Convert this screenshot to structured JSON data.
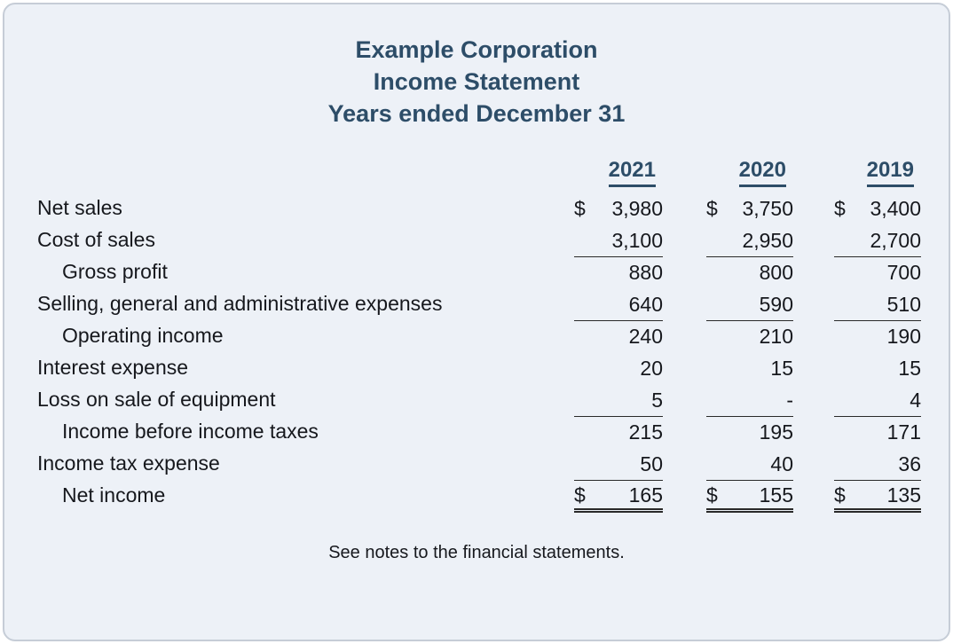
{
  "title": {
    "lines": [
      "Example Corporation",
      "Income Statement",
      "Years ended December 31"
    ]
  },
  "table": {
    "columns": [
      "2021",
      "2020",
      "2019"
    ],
    "rows": [
      {
        "label": "Net sales",
        "indent": false,
        "u": "none",
        "cells": [
          {
            "p": "$",
            "v": "3,980"
          },
          {
            "p": "$",
            "v": "3,750"
          },
          {
            "p": "$",
            "v": "3,400"
          }
        ]
      },
      {
        "label": "Cost of sales",
        "indent": false,
        "u": "single",
        "cells": [
          {
            "p": "",
            "v": "3,100"
          },
          {
            "p": "",
            "v": "2,950"
          },
          {
            "p": "",
            "v": "2,700"
          }
        ]
      },
      {
        "label": "Gross profit",
        "indent": true,
        "u": "none",
        "cells": [
          {
            "p": "",
            "v": "880"
          },
          {
            "p": "",
            "v": "800"
          },
          {
            "p": "",
            "v": "700"
          }
        ]
      },
      {
        "label": "Selling, general and administrative expenses",
        "indent": false,
        "u": "single",
        "cells": [
          {
            "p": "",
            "v": "640"
          },
          {
            "p": "",
            "v": "590"
          },
          {
            "p": "",
            "v": "510"
          }
        ]
      },
      {
        "label": "Operating income",
        "indent": true,
        "u": "none",
        "cells": [
          {
            "p": "",
            "v": "240"
          },
          {
            "p": "",
            "v": "210"
          },
          {
            "p": "",
            "v": "190"
          }
        ]
      },
      {
        "label": "Interest expense",
        "indent": false,
        "u": "none",
        "cells": [
          {
            "p": "",
            "v": "20"
          },
          {
            "p": "",
            "v": "15"
          },
          {
            "p": "",
            "v": "15"
          }
        ]
      },
      {
        "label": "Loss on sale of equipment",
        "indent": false,
        "u": "single",
        "cells": [
          {
            "p": "",
            "v": "5"
          },
          {
            "p": "",
            "v": "-"
          },
          {
            "p": "",
            "v": "4"
          }
        ]
      },
      {
        "label": "Income before income taxes",
        "indent": true,
        "u": "none",
        "cells": [
          {
            "p": "",
            "v": "215"
          },
          {
            "p": "",
            "v": "195"
          },
          {
            "p": "",
            "v": "171"
          }
        ]
      },
      {
        "label": "Income tax expense",
        "indent": false,
        "u": "single",
        "cells": [
          {
            "p": "",
            "v": "50"
          },
          {
            "p": "",
            "v": "40"
          },
          {
            "p": "",
            "v": "36"
          }
        ]
      },
      {
        "label": "Net income",
        "indent": true,
        "u": "double",
        "cells": [
          {
            "p": "$",
            "v": "165"
          },
          {
            "p": "$",
            "v": "155"
          },
          {
            "p": "$",
            "v": "135"
          }
        ]
      }
    ]
  },
  "footer": {
    "note": "See notes to the financial statements."
  },
  "colors": {
    "accent": "#2d4d68",
    "card_background": "#edf1f7",
    "card_border": "#c6cdd7",
    "text": "#16181d",
    "rule_line": "#2a2a2a"
  }
}
